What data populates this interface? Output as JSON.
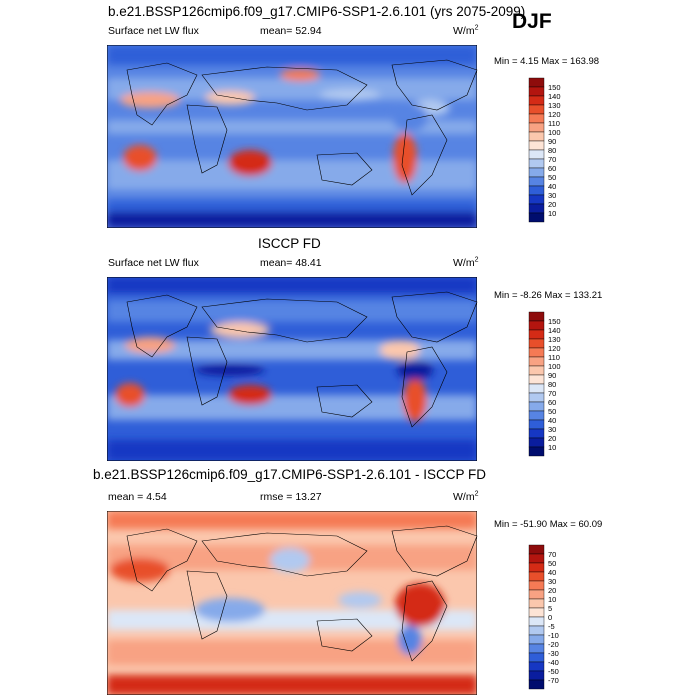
{
  "season": "DJF",
  "panels": [
    {
      "title": "b.e21.BSSP126cmip6.f09_g17.CMIP6-SSP1-2.6.101 (yrs 2075-2099)",
      "variable": "Surface net LW flux",
      "stat_label": "mean=",
      "stat_value": "52.94",
      "units_base": "W/m",
      "units_exp": "2",
      "minmax": "Min =   4.15 Max = 163.98"
    },
    {
      "title": "ISCCP FD",
      "variable": "Surface net LW flux",
      "stat_label": "mean=",
      "stat_value": "48.41",
      "units_base": "W/m",
      "units_exp": "2",
      "minmax": "Min =  -8.26 Max = 133.21"
    },
    {
      "title": "b.e21.BSSP126cmip6.f09_g17.CMIP6-SSP1-2.6.101 - ISCCP FD",
      "variable": "mean =   4.54",
      "stat_label": "rmse =",
      "stat_value": "13.27",
      "units_base": "W/m",
      "units_exp": "2",
      "minmax": "Min = -51.90 Max = 60.09"
    }
  ],
  "chart_data": [
    {
      "type": "heatmap",
      "title": "b.e21.BSSP126cmip6.f09_g17.CMIP6-SSP1-2.6.101 (yrs 2075-2099)",
      "variable": "Surface net LW flux",
      "mean": 52.94,
      "min": 4.15,
      "max": 163.98,
      "units": "W/m2",
      "colorbar_levels": [
        150,
        140,
        130,
        120,
        110,
        100,
        90,
        80,
        70,
        60,
        50,
        40,
        30,
        20,
        10
      ],
      "colorbar_colors": [
        "#8e0c0c",
        "#b3150f",
        "#d42b16",
        "#e84f2b",
        "#f57a55",
        "#f8a283",
        "#fbc7ad",
        "#fde4d6",
        "#dce7f7",
        "#b1c9f0",
        "#86aaea",
        "#5784e3",
        "#2f5ed8",
        "#1637c3",
        "#0a1d9e",
        "#000d6e"
      ]
    },
    {
      "type": "heatmap",
      "title": "ISCCP FD",
      "variable": "Surface net LW flux",
      "mean": 48.41,
      "min": -8.26,
      "max": 133.21,
      "units": "W/m2",
      "colorbar_levels": [
        150,
        140,
        130,
        120,
        110,
        100,
        90,
        80,
        70,
        60,
        50,
        40,
        30,
        20,
        10
      ],
      "colorbar_colors": [
        "#8e0c0c",
        "#b3150f",
        "#d42b16",
        "#e84f2b",
        "#f57a55",
        "#f8a283",
        "#fbc7ad",
        "#fde4d6",
        "#dce7f7",
        "#b1c9f0",
        "#86aaea",
        "#5784e3",
        "#2f5ed8",
        "#1637c3",
        "#0a1d9e",
        "#000d6e"
      ]
    },
    {
      "type": "heatmap",
      "title": "b.e21.BSSP126cmip6.f09_g17.CMIP6-SSP1-2.6.101 - ISCCP FD",
      "mean": 4.54,
      "rmse": 13.27,
      "min": -51.9,
      "max": 60.09,
      "units": "W/m2",
      "colorbar_levels": [
        70,
        50,
        40,
        30,
        20,
        10,
        5,
        0,
        -5,
        -10,
        -20,
        -30,
        -40,
        -50,
        -70
      ],
      "colorbar_colors": [
        "#8e0c0c",
        "#b3150f",
        "#d42b16",
        "#e84f2b",
        "#f57a55",
        "#f8a283",
        "#fbc7ad",
        "#fde4d6",
        "#dce7f7",
        "#b1c9f0",
        "#86aaea",
        "#5784e3",
        "#2f5ed8",
        "#1637c3",
        "#0a1d9e",
        "#000d6e"
      ]
    }
  ]
}
